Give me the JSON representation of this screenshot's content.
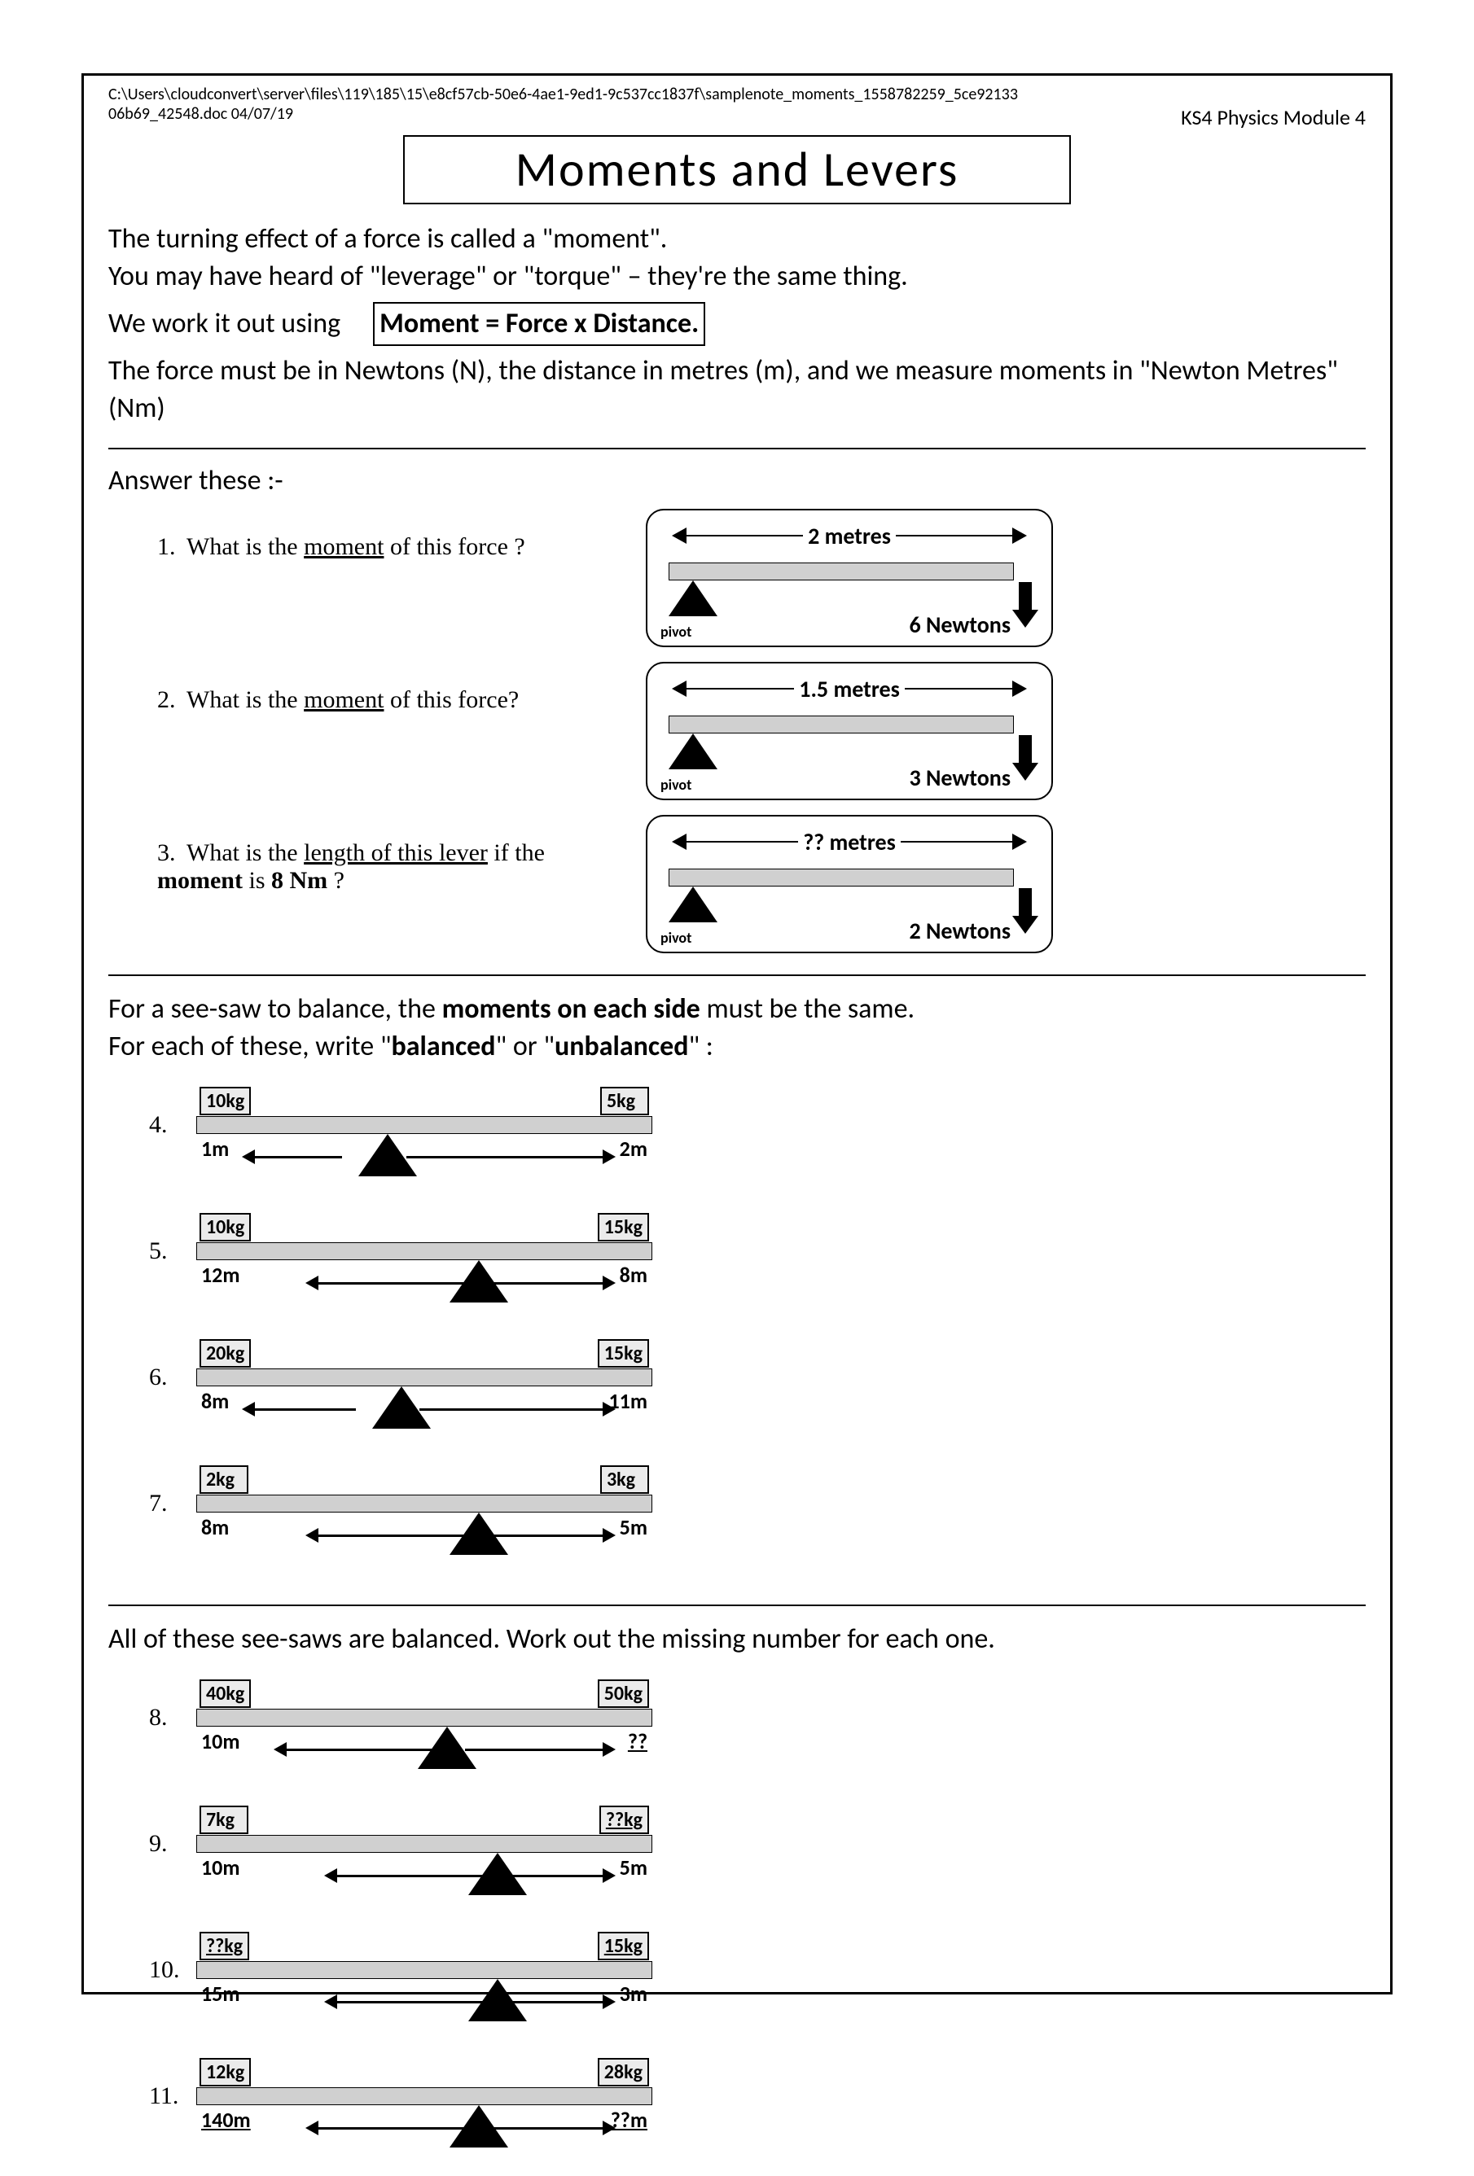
{
  "header": {
    "path_line1": "C:\\Users\\cloudconvert\\server\\files\\119\\185\\15\\e8cf57cb-50e6-4ae1-9ed1-9c537cc1837f\\samplenote_moments_1558782259_5ce92133",
    "path_line2": "06b69_42548.doc 04/07/19",
    "module": "KS4 Physics Module 4"
  },
  "title": "Moments and Levers",
  "intro": {
    "l1": "The turning effect of a force is called a \"moment\".",
    "l2": "You may have heard of \"leverage\" or \"torque\" – they're the same thing.",
    "l3_prefix": "We work it out using",
    "formula": "Moment = Force x Distance",
    "l4": "The force must be in Newtons (N), the distance in metres (m), and we measure moments in \"Newton Metres\"(Nm)"
  },
  "section_a": {
    "heading": "Answer these :-",
    "q1_num": "1.",
    "q1_a": "What is the ",
    "q1_u": "moment",
    "q1_b": " of this force ?",
    "q2_num": "2.",
    "q2_a": "What is the ",
    "q2_u": "moment",
    "q2_b": " of this force?",
    "q3_num": "3.",
    "q3_a": "What is the ",
    "q3_u": "length of this lever",
    "q3_b": " if the ",
    "q3_c": "moment",
    "q3_d": " is ",
    "q3_e": "8 Nm",
    "q3_f": " ?",
    "pivot_label": "pivot",
    "lever1": {
      "distance": "2 metres",
      "force": "6 Newtons"
    },
    "lever2": {
      "distance": "1.5 metres",
      "force": "3 Newtons"
    },
    "lever3": {
      "distance": "?? metres",
      "force": "2 Newtons"
    }
  },
  "section_b": {
    "l1a": "For a see-saw to balance, the ",
    "l1b": "moments on each side",
    "l1c": " must be the same.",
    "l2a": "For each of these, write \"",
    "l2b": "balanced",
    "l2c": "\" or \"",
    "l2d": "unbalanced",
    "l2e": "\" :",
    "items": [
      {
        "num": "4.",
        "lw": "10kg",
        "rw": "5kg",
        "ld": "1m",
        "rd": "2m",
        "fulc": 42
      },
      {
        "num": "5.",
        "lw": "10kg",
        "rw": "15kg",
        "ld": "12m",
        "rd": "8m",
        "fulc": 62
      },
      {
        "num": "6.",
        "lw": "20kg",
        "rw": "15kg",
        "ld": "8m",
        "rd": "11m",
        "fulc": 45
      },
      {
        "num": "7.",
        "lw": "2kg",
        "rw": "3kg",
        "ld": "8m",
        "rd": "5m",
        "fulc": 62
      }
    ]
  },
  "section_c": {
    "l1": "All of these see-saws are balanced. Work out the missing number for each one.",
    "items": [
      {
        "num": "8.",
        "lw": "40kg",
        "rw": "50kg",
        "ld": "10m",
        "rd": "??",
        "fulc": 55,
        "u_rw": false,
        "u_lw": false,
        "u_ld": false,
        "u_rd": true
      },
      {
        "num": "9.",
        "lw": "7kg",
        "rw": "??kg",
        "ld": "10m",
        "rd": "5m",
        "fulc": 66,
        "u_rw": true,
        "u_lw": false,
        "u_ld": false,
        "u_rd": false
      },
      {
        "num": "10.",
        "lw": "??kg",
        "rw": "15kg",
        "ld": "15m",
        "rd": "3m",
        "fulc": 66,
        "u_rw": true,
        "u_lw": true,
        "u_ld": false,
        "u_rd": false
      },
      {
        "num": "11.",
        "lw": "12kg",
        "rw": "28kg",
        "ld": "140m",
        "rd": "??m",
        "fulc": 62,
        "u_rw": false,
        "u_lw": false,
        "u_ld": true,
        "u_rd": true
      }
    ]
  },
  "colors": {
    "bar": "#d0d0d0",
    "box_bg": "#ebebeb",
    "border": "#000000",
    "background": "#ffffff"
  }
}
